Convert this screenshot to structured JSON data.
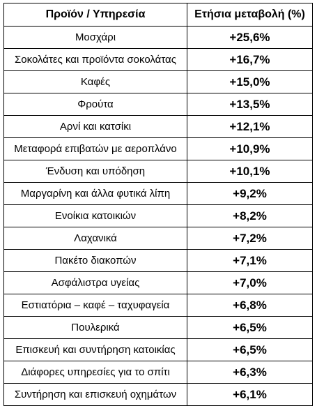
{
  "table": {
    "headers": [
      "Προϊόν / Υπηρεσία",
      "Ετήσια μεταβολή (%)"
    ],
    "rows": [
      {
        "product": "Μοσχάρι",
        "change": "+25,6%"
      },
      {
        "product": "Σοκολάτες και προϊόντα σοκολάτας",
        "change": "+16,7%"
      },
      {
        "product": "Καφές",
        "change": "+15,0%"
      },
      {
        "product": "Φρούτα",
        "change": "+13,5%"
      },
      {
        "product": "Αρνί και κατσίκι",
        "change": "+12,1%"
      },
      {
        "product": "Μεταφορά επιβατών με αεροπλάνο",
        "change": "+10,9%"
      },
      {
        "product": "Ένδυση και υπόδηση",
        "change": "+10,1%"
      },
      {
        "product": "Μαργαρίνη και άλλα φυτικά λίπη",
        "change": "+9,2%"
      },
      {
        "product": "Ενοίκια κατοικιών",
        "change": "+8,2%"
      },
      {
        "product": "Λαχανικά",
        "change": "+7,2%"
      },
      {
        "product": "Πακέτο διακοπών",
        "change": "+7,1%"
      },
      {
        "product": "Ασφάλιστρα υγείας",
        "change": "+7,0%"
      },
      {
        "product": "Εστιατόρια – καφέ – ταχυφαγεία",
        "change": "+6,8%"
      },
      {
        "product": "Πουλερικά",
        "change": "+6,5%"
      },
      {
        "product": "Επισκευή και συντήρηση κατοικίας",
        "change": "+6,5%"
      },
      {
        "product": "Διάφορες υπηρεσίες για το σπίτι",
        "change": "+6,3%"
      },
      {
        "product": "Συντήρηση και επισκευή οχημάτων",
        "change": "+6,1%"
      }
    ]
  }
}
